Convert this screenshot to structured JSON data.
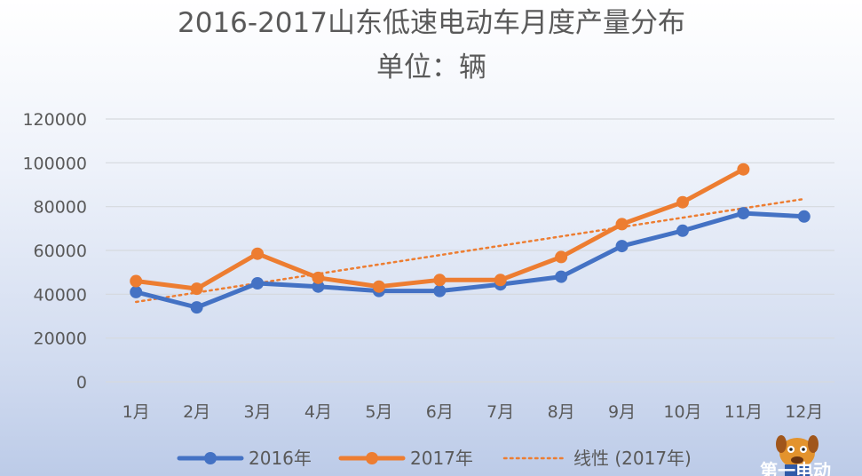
{
  "chart_data": {
    "type": "line",
    "title": "2016-2017山东低速电动车月度产量分布",
    "subtitle": "单位：辆",
    "categories": [
      "1月",
      "2月",
      "3月",
      "4月",
      "5月",
      "6月",
      "7月",
      "8月",
      "9月",
      "10月",
      "11月",
      "12月"
    ],
    "y_ticks": [
      "0",
      "20000",
      "40000",
      "60000",
      "80000",
      "100000",
      "120000"
    ],
    "ylim": [
      0,
      120000
    ],
    "grid": true,
    "legend_position": "bottom",
    "series": [
      {
        "name": "2016年",
        "color": "#4472c4",
        "values": [
          41000,
          34000,
          45000,
          43500,
          41500,
          41500,
          44500,
          48000,
          62000,
          69000,
          77000,
          75500
        ]
      },
      {
        "name": "2017年",
        "color": "#ed7d31",
        "values": [
          46000,
          42500,
          58500,
          47500,
          43500,
          46500,
          46500,
          57000,
          72000,
          82000,
          97000,
          null
        ]
      }
    ],
    "trendline": {
      "name": "线性 (2017年)",
      "color": "#ed7d31",
      "style": "dotted",
      "from": 36500,
      "to": 83500
    }
  },
  "watermark": {
    "text": "第一电动"
  }
}
